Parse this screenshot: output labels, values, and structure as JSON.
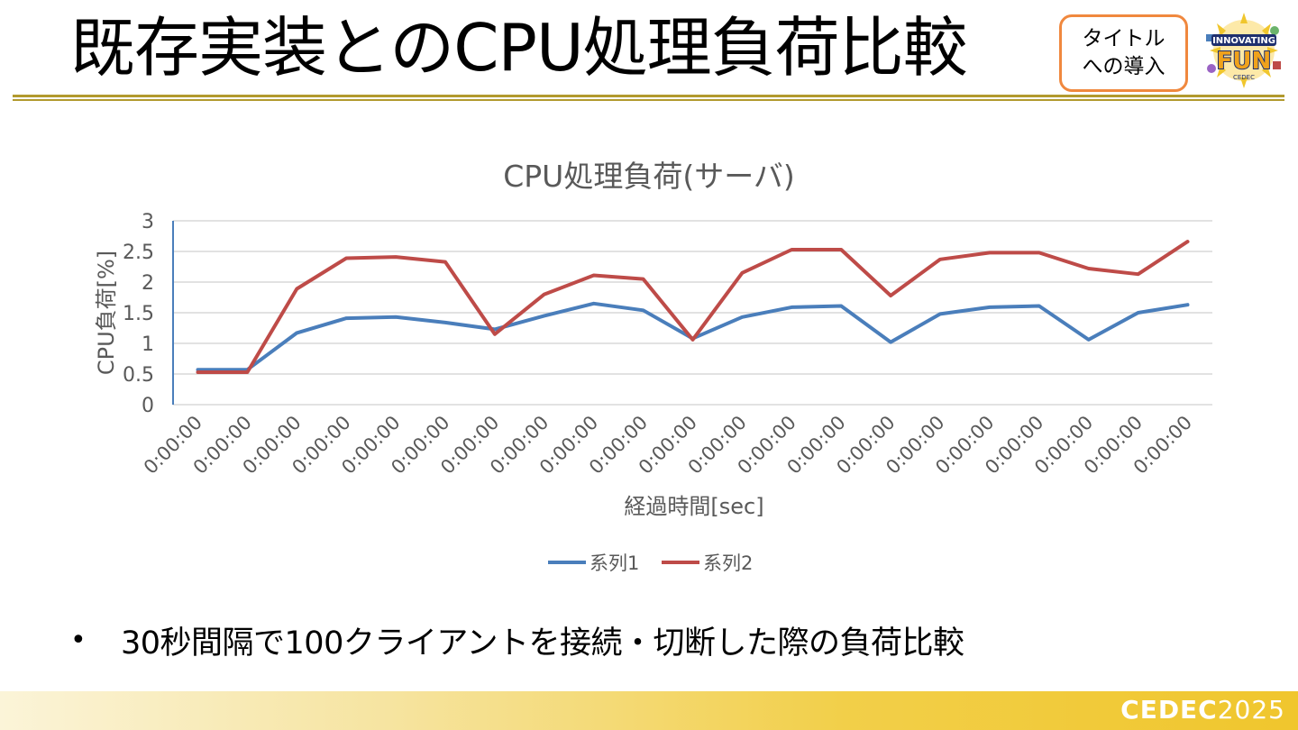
{
  "slide": {
    "title": "既存実装とのCPU処理負荷比較",
    "badge_line1": "タイトル",
    "badge_line2": "への導入",
    "bullet_marker": "•",
    "bullet_text": "30秒間隔で100クライアントを接続・切断した際の負荷比較"
  },
  "logo": {
    "line1": "INNOVATING",
    "line2": "FUN",
    "line3": "CEDEC"
  },
  "footer": {
    "brand": "CEDEC",
    "year": "2025"
  },
  "colors": {
    "series1": "#4a7ebb",
    "series2": "#be4b48",
    "title_rule": "#b29a2e",
    "badge_border": "#f0883e",
    "footer_gold": "#f0c62d"
  },
  "chart_data": {
    "type": "line",
    "title": "CPU処理負荷(サーバ)",
    "xlabel": "経過時間[sec]",
    "ylabel": "CPU負荷[%]",
    "ylim": [
      0,
      3
    ],
    "yticks": [
      "0",
      "0.5",
      "1",
      "1.5",
      "2",
      "2.5",
      "3"
    ],
    "categories": [
      "0:00:00",
      "0:00:00",
      "0:00:00",
      "0:00:00",
      "0:00:00",
      "0:00:00",
      "0:00:00",
      "0:00:00",
      "0:00:00",
      "0:00:00",
      "0:00:00",
      "0:00:00",
      "0:00:00",
      "0:00:00",
      "0:00:00",
      "0:00:00",
      "0:00:00",
      "0:00:00",
      "0:00:00",
      "0:00:00",
      "0:00:00"
    ],
    "grid": true,
    "legend_position": "bottom",
    "series": [
      {
        "name": "系列1",
        "values": [
          0.57,
          0.57,
          1.17,
          1.41,
          1.43,
          1.34,
          1.23,
          1.45,
          1.65,
          1.54,
          1.08,
          1.43,
          1.59,
          1.61,
          1.02,
          1.48,
          1.59,
          1.61,
          1.06,
          1.5,
          1.63
        ]
      },
      {
        "name": "系列2",
        "values": [
          0.53,
          0.53,
          1.89,
          2.39,
          2.41,
          2.33,
          1.15,
          1.8,
          2.11,
          2.05,
          1.06,
          2.15,
          2.53,
          2.53,
          1.78,
          2.37,
          2.48,
          2.48,
          2.22,
          2.13,
          2.66
        ]
      }
    ]
  }
}
